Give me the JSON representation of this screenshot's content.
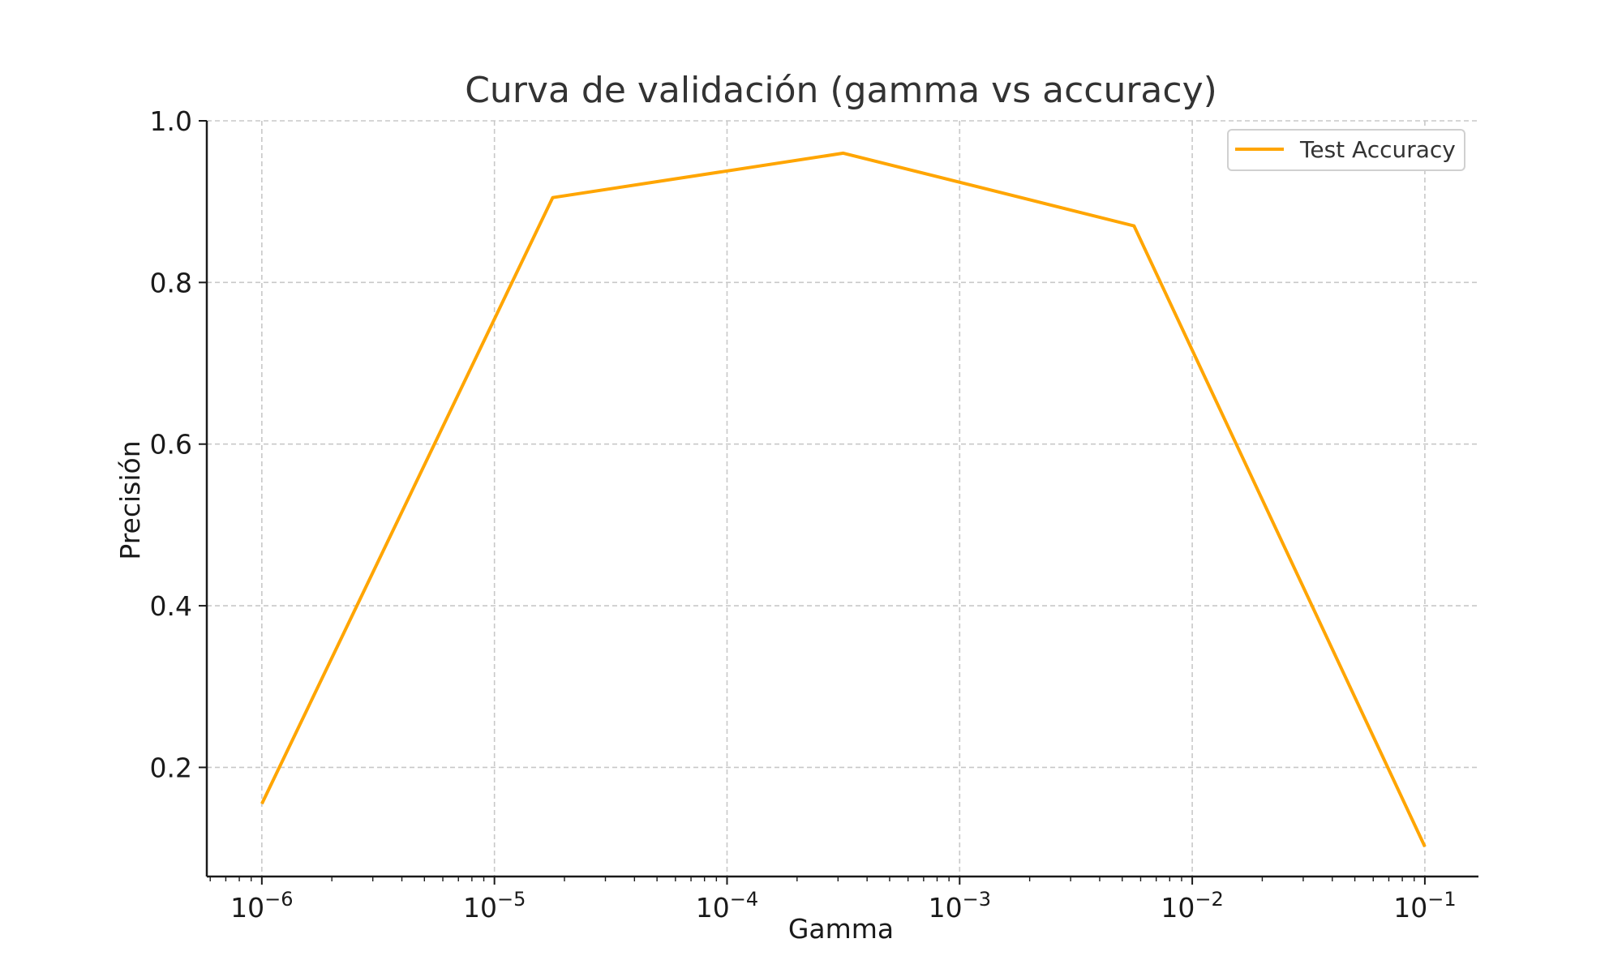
{
  "chart_data": {
    "type": "line",
    "title": "Curva de validación (gamma vs accuracy)",
    "xlabel": "Gamma",
    "ylabel": "Precisión",
    "xscale": "log",
    "xlim": [
      5.8e-07,
      0.17
    ],
    "ylim": [
      0.065,
      1.0
    ],
    "grid": true,
    "legend_position": "top-right",
    "x_tick_exponents": [
      -6,
      -5,
      -4,
      -3,
      -2,
      -1
    ],
    "x_tick_base": "10",
    "x_tick_values": [
      1e-06,
      1e-05,
      0.0001,
      0.001,
      0.01,
      0.1
    ],
    "y_ticks": [
      0.2,
      0.4,
      0.6,
      0.8,
      1.0
    ],
    "y_tick_labels": [
      "0.2",
      "0.4",
      "0.6",
      "0.8",
      "1.0"
    ],
    "series": [
      {
        "name": "Test Accuracy",
        "color": "#FFA500",
        "x": [
          1e-06,
          1.78e-05,
          0.000316,
          0.00562,
          0.1
        ],
        "y": [
          0.155,
          0.905,
          0.96,
          0.87,
          0.102
        ]
      }
    ]
  }
}
